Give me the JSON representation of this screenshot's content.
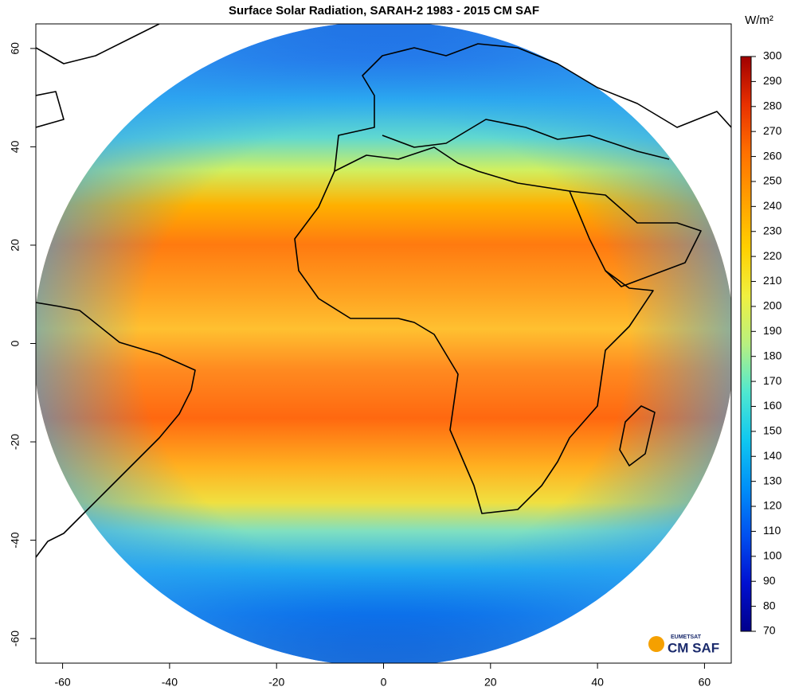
{
  "title": "Surface Solar Radiation, SARAH-2  1983 - 2015  CM SAF",
  "map": {
    "xlim": [
      -65,
      65
    ],
    "ylim": [
      -65,
      65
    ],
    "xticks": [
      -60,
      -40,
      -20,
      0,
      20,
      40,
      60
    ],
    "yticks": [
      -60,
      -40,
      -20,
      0,
      20,
      40,
      60
    ]
  },
  "colorbar": {
    "unit": "W/m²",
    "lim": [
      70,
      300
    ],
    "ticks": [
      70,
      80,
      90,
      100,
      110,
      120,
      130,
      140,
      150,
      160,
      170,
      180,
      190,
      200,
      210,
      220,
      230,
      240,
      250,
      260,
      270,
      280,
      290,
      300
    ],
    "colors": [
      "#00008b",
      "#0010d0",
      "#0050f0",
      "#0090f8",
      "#10c8f0",
      "#50e8d0",
      "#b8f080",
      "#f0f040",
      "#ffd000",
      "#ffa000",
      "#ff7000",
      "#e83000",
      "#a00000"
    ]
  },
  "logo": {
    "org": "EUMETSAT",
    "name": "CM SAF"
  }
}
